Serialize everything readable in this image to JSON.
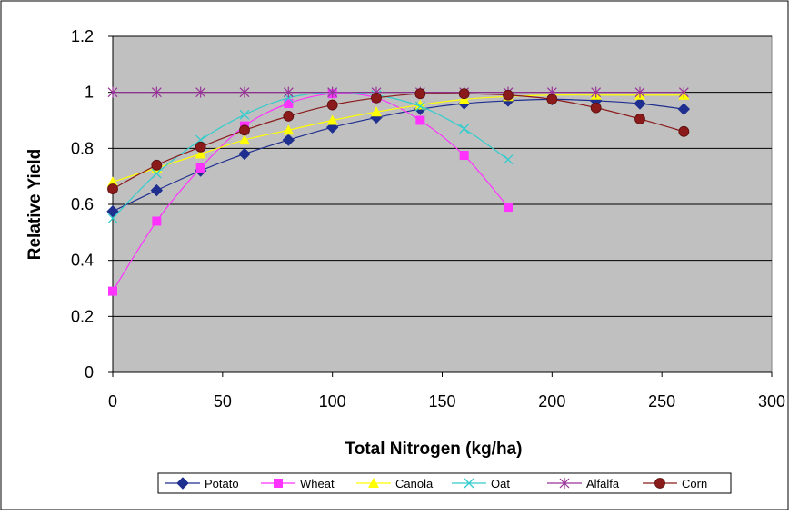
{
  "chart_data": {
    "type": "line",
    "title": "",
    "xlabel": "Total Nitrogen (kg/ha)",
    "ylabel": "Relative Yield",
    "xlim": [
      0,
      300
    ],
    "ylim": [
      0,
      1.2
    ],
    "x_ticks": [
      0,
      50,
      100,
      150,
      200,
      250,
      300
    ],
    "y_ticks": [
      0,
      0.2,
      0.4,
      0.6,
      0.8,
      1,
      1.2
    ],
    "x_tick_labels": [
      "0",
      "50",
      "100",
      "150",
      "200",
      "250",
      "300"
    ],
    "y_tick_labels": [
      "0",
      "0.2",
      "0.4",
      "0.6",
      "0.8",
      "1",
      "1.2"
    ],
    "grid": "horizontal",
    "plot_background": "#c0c0c0",
    "legend_position": "bottom",
    "series": [
      {
        "name": "Potato",
        "color": "#1f2f8f",
        "marker": "diamond",
        "x": [
          0,
          20,
          40,
          60,
          80,
          100,
          120,
          140,
          160,
          180,
          200,
          220,
          240,
          260
        ],
        "y": [
          0.575,
          0.65,
          0.72,
          0.78,
          0.83,
          0.875,
          0.91,
          0.94,
          0.96,
          0.97,
          0.975,
          0.97,
          0.96,
          0.94
        ]
      },
      {
        "name": "Wheat",
        "color": "#ff33ff",
        "marker": "square",
        "x": [
          0,
          20,
          40,
          60,
          80,
          100,
          120,
          140,
          160,
          180
        ],
        "y": [
          0.29,
          0.54,
          0.73,
          0.88,
          0.96,
          0.995,
          0.98,
          0.9,
          0.775,
          0.59
        ]
      },
      {
        "name": "Canola",
        "color": "#ffff00",
        "marker": "triangle",
        "x": [
          0,
          20,
          40,
          60,
          80,
          100,
          120,
          140,
          160,
          180,
          200,
          220,
          240,
          260
        ],
        "y": [
          0.68,
          0.73,
          0.78,
          0.83,
          0.865,
          0.9,
          0.93,
          0.955,
          0.975,
          0.985,
          0.99,
          0.99,
          0.99,
          0.99
        ]
      },
      {
        "name": "Oat",
        "color": "#33cccc",
        "marker": "x",
        "x": [
          0,
          20,
          40,
          60,
          80,
          100,
          120,
          140,
          160,
          180
        ],
        "y": [
          0.55,
          0.71,
          0.83,
          0.92,
          0.98,
          1.0,
          0.99,
          0.95,
          0.87,
          0.76
        ]
      },
      {
        "name": "Alfalfa",
        "color": "#993399",
        "marker": "asterisk",
        "x": [
          0,
          20,
          40,
          60,
          80,
          100,
          120,
          140,
          160,
          180,
          200,
          220,
          240,
          260
        ],
        "y": [
          1,
          1,
          1,
          1,
          1,
          1,
          1,
          1,
          1,
          1,
          1,
          1,
          1,
          1
        ]
      },
      {
        "name": "Corn",
        "color": "#8b1a1a",
        "marker": "circle",
        "x": [
          0,
          20,
          40,
          60,
          80,
          100,
          120,
          140,
          160,
          180,
          200,
          220,
          240,
          260
        ],
        "y": [
          0.655,
          0.74,
          0.805,
          0.865,
          0.915,
          0.955,
          0.98,
          0.995,
          0.995,
          0.99,
          0.975,
          0.945,
          0.905,
          0.86
        ]
      }
    ]
  }
}
